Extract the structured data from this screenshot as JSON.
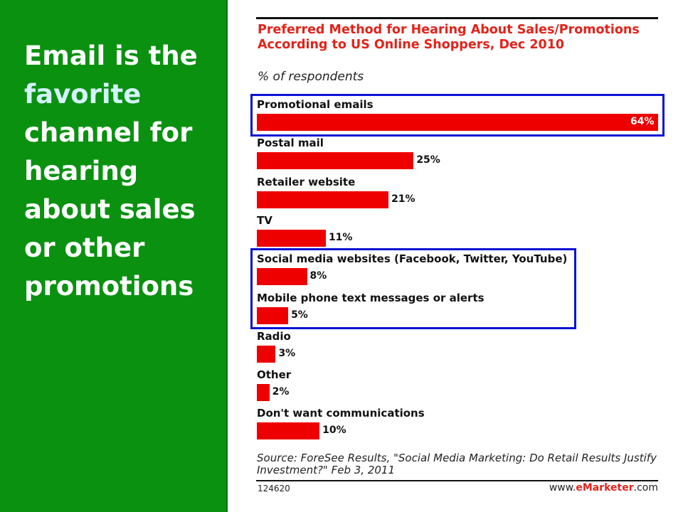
{
  "headline": {
    "line1": "Email is the",
    "highlight": "favorite",
    "rest": "channel for hearing about sales or other promotions"
  },
  "chart_data": {
    "type": "bar",
    "orientation": "horizontal",
    "title": "Preferred Method for Hearing About Sales/Promotions According to US Online Shoppers, Dec 2010",
    "subtitle": "% of respondents",
    "unit": "%",
    "categories": [
      "Promotional emails",
      "Postal mail",
      "Retailer website",
      "TV",
      "Social media websites (Facebook, Twitter, YouTube)",
      "Mobile phone text messages or alerts",
      "Radio",
      "Other",
      "Don't want communications"
    ],
    "values": [
      64,
      25,
      21,
      11,
      8,
      5,
      3,
      2,
      10
    ],
    "value_labels": [
      "64%",
      "25%",
      "21%",
      "11%",
      "8%",
      "5%",
      "3%",
      "2%",
      "10%"
    ],
    "xlim": [
      0,
      64
    ],
    "grid": false,
    "legend": "none",
    "bar_color": "#ee0000",
    "highlight_color": "#0b12d4",
    "highlighted_groups": [
      [
        0
      ],
      [
        4,
        5
      ]
    ]
  },
  "source": "Source: ForeSee Results, \"Social Media Marketing: Do Retail Results Justify Investment?\" Feb 3, 2011",
  "chart_id": "124620",
  "brand": {
    "prefix": "www.",
    "name": "eMarketer",
    "suffix": ".com"
  },
  "colors": {
    "panel": "#0a9110",
    "title": "#e2231a"
  }
}
